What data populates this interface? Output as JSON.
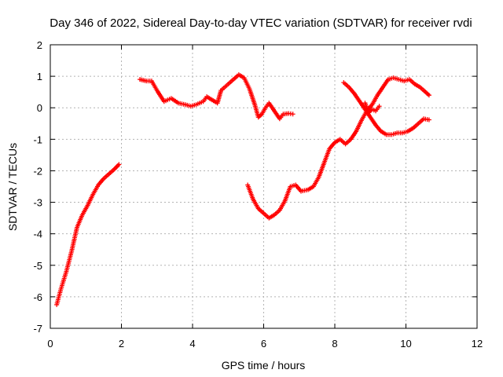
{
  "chart_data": {
    "type": "scatter",
    "title": "Day 346 of 2022, Sidereal Day-to-day VTEC variation (SDTVAR) for receiver rvdi",
    "xlabel": "GPS time / hours",
    "ylabel": "SDTVAR / TECUs",
    "xlim": [
      0,
      12
    ],
    "ylim": [
      -7,
      2
    ],
    "xticks": [
      "0",
      "2",
      "4",
      "6",
      "8",
      "10",
      "12"
    ],
    "yticks": [
      "-7",
      "-6",
      "-5",
      "-4",
      "-3",
      "-2",
      "-1",
      "0",
      "1",
      "2"
    ],
    "grid": true,
    "marker": "plus",
    "colors": {
      "series": "#ff0000",
      "grid": "#b4b4b4",
      "axis": "#000000"
    },
    "series": [
      {
        "segments": [
          [
            [
              0.18,
              -6.25
            ],
            [
              0.3,
              -5.75
            ],
            [
              0.45,
              -5.2
            ],
            [
              0.6,
              -4.55
            ],
            [
              0.75,
              -3.8
            ],
            [
              0.9,
              -3.4
            ],
            [
              1.05,
              -3.1
            ],
            [
              1.2,
              -2.75
            ],
            [
              1.35,
              -2.45
            ],
            [
              1.5,
              -2.25
            ],
            [
              1.65,
              -2.1
            ],
            [
              1.8,
              -1.95
            ],
            [
              1.93,
              -1.8
            ]
          ],
          [
            [
              2.52,
              0.9
            ],
            [
              2.7,
              0.85
            ],
            [
              2.85,
              0.85
            ],
            [
              3.0,
              0.55
            ],
            [
              3.2,
              0.2
            ],
            [
              3.4,
              0.3
            ],
            [
              3.6,
              0.15
            ],
            [
              3.8,
              0.1
            ],
            [
              3.95,
              0.05
            ],
            [
              4.1,
              0.1
            ],
            [
              4.3,
              0.2
            ],
            [
              4.4,
              0.35
            ],
            [
              4.55,
              0.25
            ],
            [
              4.7,
              0.15
            ],
            [
              4.8,
              0.55
            ],
            [
              5.0,
              0.75
            ],
            [
              5.15,
              0.9
            ],
            [
              5.3,
              1.05
            ],
            [
              5.45,
              0.95
            ],
            [
              5.6,
              0.6
            ],
            [
              5.75,
              0.1
            ],
            [
              5.85,
              -0.3
            ],
            [
              5.95,
              -0.2
            ],
            [
              6.05,
              0.0
            ],
            [
              6.15,
              0.15
            ],
            [
              6.3,
              -0.1
            ],
            [
              6.45,
              -0.35
            ],
            [
              6.55,
              -0.2
            ],
            [
              6.7,
              -0.18
            ],
            [
              6.82,
              -0.2
            ]
          ],
          [
            [
              5.55,
              -2.45
            ],
            [
              5.7,
              -2.9
            ],
            [
              5.85,
              -3.2
            ],
            [
              6.0,
              -3.35
            ],
            [
              6.15,
              -3.5
            ],
            [
              6.3,
              -3.4
            ],
            [
              6.45,
              -3.25
            ],
            [
              6.6,
              -2.95
            ],
            [
              6.75,
              -2.5
            ],
            [
              6.9,
              -2.45
            ],
            [
              7.05,
              -2.65
            ],
            [
              7.25,
              -2.6
            ],
            [
              7.4,
              -2.5
            ],
            [
              7.55,
              -2.2
            ],
            [
              7.7,
              -1.75
            ],
            [
              7.85,
              -1.3
            ],
            [
              8.0,
              -1.1
            ],
            [
              8.15,
              -1.0
            ],
            [
              8.3,
              -1.15
            ],
            [
              8.45,
              -1.0
            ],
            [
              8.6,
              -0.75
            ],
            [
              8.75,
              -0.4
            ],
            [
              8.9,
              -0.1
            ],
            [
              9.05,
              0.1
            ],
            [
              9.2,
              0.4
            ],
            [
              9.35,
              0.65
            ],
            [
              9.5,
              0.9
            ],
            [
              9.65,
              0.95
            ],
            [
              9.8,
              0.9
            ],
            [
              9.95,
              0.85
            ],
            [
              10.1,
              0.9
            ],
            [
              10.25,
              0.75
            ],
            [
              10.4,
              0.65
            ],
            [
              10.55,
              0.5
            ],
            [
              10.65,
              0.4
            ]
          ],
          [
            [
              8.25,
              0.8
            ],
            [
              8.4,
              0.65
            ],
            [
              8.55,
              0.45
            ],
            [
              8.7,
              0.2
            ],
            [
              8.85,
              -0.05
            ],
            [
              9.0,
              -0.3
            ],
            [
              9.15,
              -0.55
            ],
            [
              9.3,
              -0.75
            ],
            [
              9.45,
              -0.85
            ],
            [
              9.6,
              -0.85
            ],
            [
              9.75,
              -0.8
            ],
            [
              9.9,
              -0.8
            ],
            [
              10.05,
              -0.75
            ],
            [
              10.2,
              -0.65
            ],
            [
              10.35,
              -0.5
            ],
            [
              10.5,
              -0.35
            ],
            [
              10.65,
              -0.38
            ]
          ],
          [
            [
              8.85,
              0.15
            ],
            [
              8.95,
              -0.15
            ],
            [
              9.05,
              -0.05
            ],
            [
              9.15,
              -0.1
            ],
            [
              9.25,
              0.05
            ]
          ]
        ]
      }
    ]
  }
}
